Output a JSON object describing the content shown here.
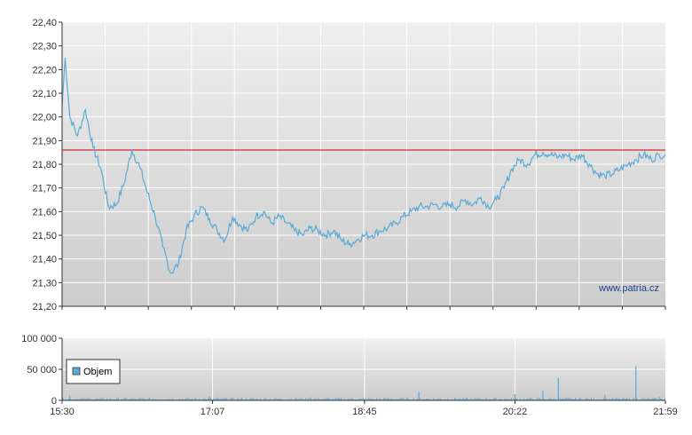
{
  "chart_data": [
    {
      "type": "line",
      "x_range": [
        "15:30",
        "21:59"
      ],
      "ylim": [
        21.2,
        22.4
      ],
      "y_ticks": [
        "21,20",
        "21,30",
        "21,40",
        "21,50",
        "21,60",
        "21,70",
        "21,80",
        "21,90",
        "22,00",
        "22,10",
        "22,20",
        "22,30",
        "22,40"
      ],
      "grid": true,
      "reference_line": 21.86,
      "watermark": "www.patria.cz",
      "series_points": [
        [
          "15:30",
          22.05
        ],
        [
          "15:32",
          22.25
        ],
        [
          "15:35",
          22.0
        ],
        [
          "15:40",
          21.92
        ],
        [
          "15:45",
          22.03
        ],
        [
          "15:50",
          21.87
        ],
        [
          "15:55",
          21.78
        ],
        [
          "16:00",
          21.62
        ],
        [
          "16:05",
          21.63
        ],
        [
          "16:10",
          21.72
        ],
        [
          "16:15",
          21.86
        ],
        [
          "16:20",
          21.79
        ],
        [
          "16:25",
          21.68
        ],
        [
          "16:30",
          21.58
        ],
        [
          "16:35",
          21.45
        ],
        [
          "16:40",
          21.34
        ],
        [
          "16:45",
          21.38
        ],
        [
          "16:50",
          21.52
        ],
        [
          "16:55",
          21.58
        ],
        [
          "17:00",
          21.62
        ],
        [
          "17:05",
          21.57
        ],
        [
          "17:10",
          21.52
        ],
        [
          "17:15",
          21.48
        ],
        [
          "17:20",
          21.58
        ],
        [
          "17:25",
          21.54
        ],
        [
          "17:30",
          21.52
        ],
        [
          "17:35",
          21.58
        ],
        [
          "17:40",
          21.6
        ],
        [
          "17:45",
          21.55
        ],
        [
          "17:50",
          21.58
        ],
        [
          "17:55",
          21.55
        ],
        [
          "18:00",
          21.52
        ],
        [
          "18:05",
          21.5
        ],
        [
          "18:10",
          21.53
        ],
        [
          "18:15",
          21.52
        ],
        [
          "18:20",
          21.5
        ],
        [
          "18:25",
          21.52
        ],
        [
          "18:30",
          21.48
        ],
        [
          "18:35",
          21.46
        ],
        [
          "18:40",
          21.48
        ],
        [
          "18:45",
          21.5
        ],
        [
          "18:50",
          21.5
        ],
        [
          "18:55",
          21.52
        ],
        [
          "19:00",
          21.53
        ],
        [
          "19:05",
          21.55
        ],
        [
          "19:10",
          21.58
        ],
        [
          "19:15",
          21.6
        ],
        [
          "19:20",
          21.62
        ],
        [
          "19:25",
          21.62
        ],
        [
          "19:30",
          21.63
        ],
        [
          "19:35",
          21.62
        ],
        [
          "19:40",
          21.63
        ],
        [
          "19:45",
          21.62
        ],
        [
          "19:50",
          21.65
        ],
        [
          "19:55",
          21.63
        ],
        [
          "20:00",
          21.66
        ],
        [
          "20:05",
          21.62
        ],
        [
          "20:10",
          21.65
        ],
        [
          "20:15",
          21.7
        ],
        [
          "20:20",
          21.78
        ],
        [
          "20:25",
          21.82
        ],
        [
          "20:30",
          21.8
        ],
        [
          "20:35",
          21.84
        ],
        [
          "20:40",
          21.85
        ],
        [
          "20:45",
          21.84
        ],
        [
          "20:50",
          21.83
        ],
        [
          "20:55",
          21.84
        ],
        [
          "21:00",
          21.82
        ],
        [
          "21:05",
          21.84
        ],
        [
          "21:10",
          21.8
        ],
        [
          "21:15",
          21.76
        ],
        [
          "21:20",
          21.75
        ],
        [
          "21:25",
          21.76
        ],
        [
          "21:30",
          21.78
        ],
        [
          "21:35",
          21.8
        ],
        [
          "21:40",
          21.82
        ],
        [
          "21:45",
          21.84
        ],
        [
          "21:50",
          21.82
        ],
        [
          "21:55",
          21.84
        ],
        [
          "21:59",
          21.84
        ]
      ]
    },
    {
      "type": "bar",
      "x_ticks": [
        "15:30",
        "17:07",
        "18:45",
        "20:22",
        "21:59"
      ],
      "x_range": [
        "15:30",
        "21:59"
      ],
      "ylim": [
        0,
        100000
      ],
      "y_ticks": [
        "0",
        "50 000",
        "100 000"
      ],
      "grid": true,
      "legend": {
        "placement": "left",
        "entries": [
          "Objem"
        ]
      },
      "volume_spikes": [
        [
          "15:35",
          8000
        ],
        [
          "17:05",
          7000
        ],
        [
          "18:10",
          5000
        ],
        [
          "19:20",
          14000
        ],
        [
          "20:22",
          10000
        ],
        [
          "20:40",
          16000
        ],
        [
          "20:50",
          36000
        ],
        [
          "21:20",
          9000
        ],
        [
          "21:40",
          55000
        ],
        [
          "21:55",
          6000
        ]
      ],
      "volume_baseline": 2500
    }
  ],
  "colors": {
    "series_line": "#5aaad6",
    "reference_line": "#cc0000",
    "volume_bar": "#5aaad6",
    "legend_swatch": "#5aaad6",
    "plot_bg_top": "#efefef",
    "plot_bg_bottom": "#cccccc",
    "grid": "#ffffff",
    "axis": "#333333"
  }
}
